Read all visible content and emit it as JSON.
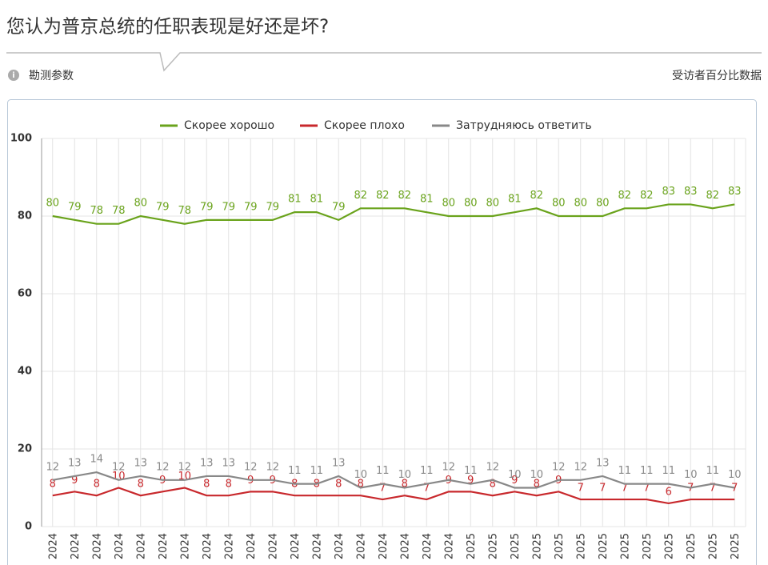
{
  "page": {
    "title": "您认为普京总统的任职表现是好还是坏?",
    "params_label": "勘测参数",
    "units_label": "受访者百分比数据"
  },
  "chart_data": {
    "type": "line",
    "categories": [
      "2024",
      "2024",
      "2024",
      "2024",
      "2024",
      "2024",
      "2024",
      "2024",
      "2024",
      "2024",
      "2024",
      "2024",
      "2024",
      "2024",
      "2024",
      "2024",
      "2024",
      "2024",
      "2024",
      "2025",
      "2025",
      "2025",
      "2025",
      "2025",
      "2025",
      "2025",
      "2025",
      "2025",
      "2025",
      "2025",
      "2025",
      "2025"
    ],
    "series": [
      {
        "name": "Скорее хорошо",
        "color": "#6aa31c",
        "values": [
          80,
          79,
          78,
          78,
          80,
          79,
          78,
          79,
          79,
          79,
          79,
          81,
          81,
          79,
          82,
          82,
          82,
          81,
          80,
          80,
          80,
          81,
          82,
          80,
          80,
          80,
          82,
          82,
          83,
          83,
          82,
          83
        ]
      },
      {
        "name": "Скорее плохо",
        "color": "#c8282c",
        "values": [
          8,
          9,
          8,
          10,
          8,
          9,
          10,
          8,
          8,
          9,
          9,
          8,
          8,
          8,
          8,
          7,
          8,
          7,
          9,
          9,
          8,
          9,
          8,
          9,
          7,
          7,
          7,
          7,
          6,
          7,
          7,
          7
        ]
      },
      {
        "name": "Затрудняюсь ответить",
        "color": "#888888",
        "values": [
          12,
          13,
          14,
          12,
          13,
          12,
          12,
          13,
          13,
          12,
          12,
          11,
          11,
          13,
          10,
          11,
          10,
          11,
          12,
          11,
          12,
          10,
          10,
          12,
          12,
          13,
          11,
          11,
          11,
          10,
          11,
          10
        ]
      }
    ],
    "ylim": [
      0,
      100
    ],
    "yticks": [
      0,
      20,
      40,
      60,
      80,
      100
    ],
    "grid": true,
    "legend": "top"
  }
}
